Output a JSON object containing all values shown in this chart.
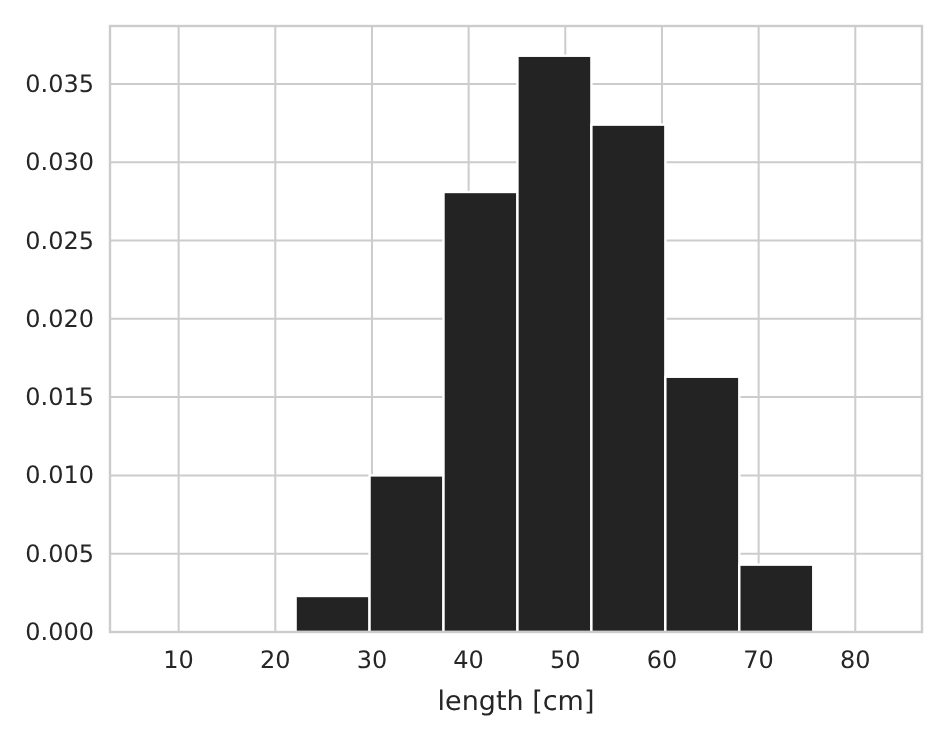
{
  "chart_data": {
    "type": "histogram",
    "xlabel": "length [cm]",
    "bins": [
      22.1,
      29.75,
      37.4,
      45.05,
      52.7,
      60.35,
      68.0,
      75.65
    ],
    "values": [
      0.0023,
      0.01,
      0.0281,
      0.0368,
      0.0324,
      0.0163,
      0.0043
    ],
    "color": "#232323",
    "xlim": [
      2.9,
      86.9
    ],
    "xticks": [
      10,
      20,
      30,
      40,
      50,
      60,
      70,
      80
    ],
    "ylim": [
      0,
      0.0387
    ],
    "yticks": [
      {
        "value": 0,
        "label": "0.000"
      },
      {
        "value": 0.005,
        "label": "0.005"
      },
      {
        "value": 0.01,
        "label": "0.010"
      },
      {
        "value": 0.015,
        "label": "0.015"
      },
      {
        "value": 0.02,
        "label": "0.020"
      },
      {
        "value": 0.025,
        "label": "0.025"
      },
      {
        "value": 0.03,
        "label": "0.030"
      },
      {
        "value": 0.035,
        "label": "0.035"
      }
    ],
    "grid": true
  }
}
